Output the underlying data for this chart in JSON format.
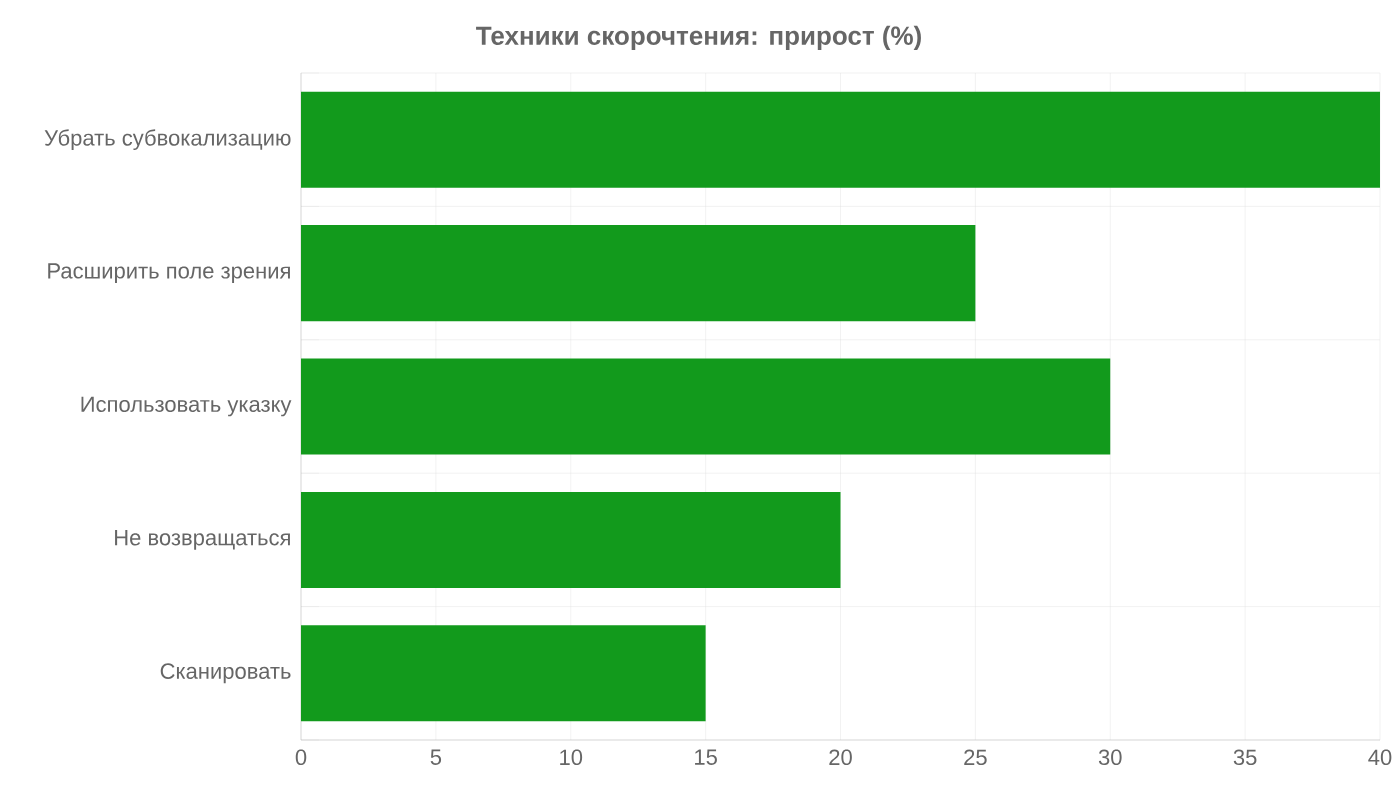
{
  "chart_data": {
    "type": "bar",
    "orientation": "horizontal",
    "title": "Техники скорочтения: прирост (%)",
    "categories": [
      "Убрать субвокализацию",
      "Расширить поле зрения",
      "Использовать указку",
      "Не возвращаться",
      "Сканировать"
    ],
    "values": [
      40,
      25,
      30,
      20,
      15
    ],
    "color": "#129a1c",
    "xlim": [
      0,
      40
    ],
    "xticks": [
      0,
      5,
      10,
      15,
      20,
      25,
      30,
      35,
      40
    ],
    "grid": true
  }
}
